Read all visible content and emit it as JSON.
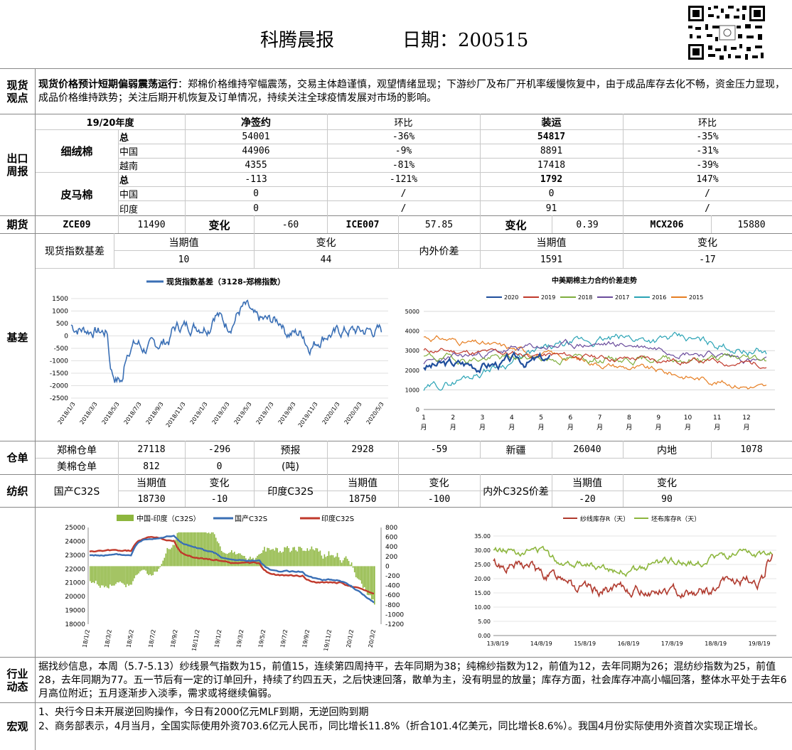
{
  "header": {
    "title": "科腾晨报",
    "date_label": "日期：200515"
  },
  "spot_view": {
    "label": "现货\n观点",
    "lead": "现货价格预计短期偏弱震荡运行",
    "body": "：郑棉价格维持窄幅震荡，交易主体趋谨慎，观望情绪显现；下游纱厂及布厂开机率缓慢恢复中，由于成品库存去化不畅，资金压力显现，成品价格维持跌势；关注后期开机恢复及订单情况，持续关注全球疫情发展对市场的影响。"
  },
  "export": {
    "label": "出口\n周报",
    "headers": [
      "19/20年度",
      "净签约",
      "环比",
      "装运",
      "环比"
    ],
    "groups": [
      {
        "name": "细绒棉",
        "rows": [
          {
            "sub": "总",
            "net": "54001",
            "net_chg": "-36%",
            "ship": "54817",
            "ship_chg": "-35%"
          },
          {
            "sub": "中国",
            "net": "44906",
            "net_chg": "-9%",
            "ship": "8891",
            "ship_chg": "-31%"
          },
          {
            "sub": "越南",
            "net": "4355",
            "net_chg": "-81%",
            "ship": "17418",
            "ship_chg": "-39%"
          }
        ]
      },
      {
        "name": "皮马棉",
        "rows": [
          {
            "sub": "总",
            "net": "-113",
            "net_chg": "-121%",
            "ship": "1792",
            "ship_chg": "147%"
          },
          {
            "sub": "中国",
            "net": "0",
            "net_chg": "/",
            "ship": "0",
            "ship_chg": "/"
          },
          {
            "sub": "印度",
            "net": "0",
            "net_chg": "/",
            "ship": "91",
            "ship_chg": "/"
          }
        ]
      }
    ]
  },
  "futures": {
    "label": "期货",
    "cells": [
      "ZCE09",
      "11490",
      "变化",
      "-60",
      "ICE007",
      "57.85",
      "变化",
      "0.39",
      "MCX206",
      "15880"
    ]
  },
  "basis": {
    "label": "基差",
    "index_label": "现货指数基差",
    "cur_label": "当期值",
    "chg_label": "变化",
    "cur": "10",
    "chg": "44",
    "spread_label": "内外价差",
    "spread_cur_label": "当期值",
    "spread_chg_label": "变化",
    "spread_cur": "1591",
    "spread_chg": "-17"
  },
  "chart_basis": {
    "legend": "现货指数基差（3128-郑棉指数）",
    "yticks": [
      "1500",
      "1000",
      "500",
      "0",
      "-500",
      "-1000",
      "-1500",
      "-2000",
      "-2500"
    ],
    "xticks": [
      "2018/1/3",
      "2018/3/3",
      "2018/5/3",
      "2018/7/3",
      "2018/9/3",
      "2018/11/3",
      "2019/1/3",
      "2019/3/3",
      "2019/5/3",
      "2019/7/3",
      "2019/9/3",
      "2019/11/3",
      "2020/1/3",
      "2020/3/3",
      "2020/5/3"
    ],
    "color": "#3a6fb5"
  },
  "chart_spread": {
    "title": "中美期棉主力合约价差走势",
    "series": [
      {
        "name": "2020",
        "color": "#1f4e9c"
      },
      {
        "name": "2019",
        "color": "#c0392b"
      },
      {
        "name": "2018",
        "color": "#7fae3e"
      },
      {
        "name": "2017",
        "color": "#6a4c9c"
      },
      {
        "name": "2016",
        "color": "#2aa3b5"
      },
      {
        "name": "2015",
        "color": "#e67e22"
      }
    ],
    "yticks": [
      "5000",
      "4000",
      "3000",
      "2000",
      "1000",
      "0"
    ],
    "xticks": [
      "1\n月",
      "2\n月",
      "3\n月",
      "4\n月",
      "5\n月",
      "6\n月",
      "7\n月",
      "8\n月",
      "9\n月",
      "10\n月",
      "11\n月",
      "12\n月"
    ]
  },
  "warehouse": {
    "label": "仓单",
    "row1": [
      "郑棉仓单",
      "27118",
      "-296",
      "预报",
      "2928",
      "-59",
      "新疆",
      "26040",
      "内地",
      "1078"
    ],
    "row2": [
      "美棉仓单",
      "812",
      "0",
      "(吨)"
    ]
  },
  "textile": {
    "label": "纺织",
    "domestic": "国产C32S",
    "india": "印度C32S",
    "spread": "内外C32S价差",
    "cur_label": "当期值",
    "chg_label": "变化",
    "dom_cur": "18730",
    "dom_chg": "-10",
    "ind_cur": "18750",
    "ind_chg": "-100",
    "spr_cur": "-20",
    "spr_chg": "90"
  },
  "chart_yarn": {
    "legend": [
      "中国-印度（C32S）",
      "国产C32S",
      "印度C32S"
    ],
    "colors": [
      "#8db63e",
      "#3a6fb5",
      "#c0392b"
    ],
    "yleft": [
      "25000",
      "24000",
      "23000",
      "22000",
      "21000",
      "20000",
      "19000",
      "18000"
    ],
    "yright": [
      "800",
      "600",
      "400",
      "200",
      "0",
      "-200",
      "-400",
      "-600",
      "-800",
      "-1000",
      "-1200"
    ],
    "xticks": [
      "18/1/2",
      "18/3/2",
      "18/5/2",
      "18/7/2",
      "18/9/2",
      "18/11/2",
      "19/1/2",
      "19/3/2",
      "19/5/2",
      "19/7/2",
      "19/9/2",
      "19/11/2",
      "20/1/2",
      "20/3/2"
    ]
  },
  "chart_stock": {
    "legend": [
      "纱线库存R（天）",
      "坯布库存R（天）"
    ],
    "colors": [
      "#b03a2e",
      "#8db63e"
    ],
    "yticks": [
      "35.00",
      "30.00",
      "25.00",
      "20.00",
      "15.00",
      "10.00",
      "5.00",
      "0.00"
    ],
    "xticks": [
      "13/8/19",
      "14/8/19",
      "15/8/19",
      "16/8/19",
      "17/8/19",
      "18/8/19",
      "19/8/19"
    ]
  },
  "industry": {
    "label": "行业\n动态",
    "text": "据找纱信息，本周（5.7-5.13）纱线景气指数为15，前值15，连续第四周持平，去年同期为38；纯棉纱指数为12，前值为12，去年同期为26；混纺纱指数为25，前值28，去年同期为77。五一节后有一定的订单回升，持续了约四五天，之后快速回落，散单为主，没有明显的放量；库存方面，社会库存冲高小幅回落，整体水平处于去年6月高位附近；五月逐渐步入淡季，需求或将继续偏弱。"
  },
  "macro": {
    "label": "宏观",
    "line1": "1、央行今日未开展逆回购操作，今日有2000亿元MLF到期，无逆回购到期",
    "line2": "2、商务部表示，4月当月，全国实际使用外资703.6亿元人民币，同比增长11.8%（折合101.4亿美元，同比增长8.6%）。我国4月份实际使用外资首次实现正增长。"
  }
}
